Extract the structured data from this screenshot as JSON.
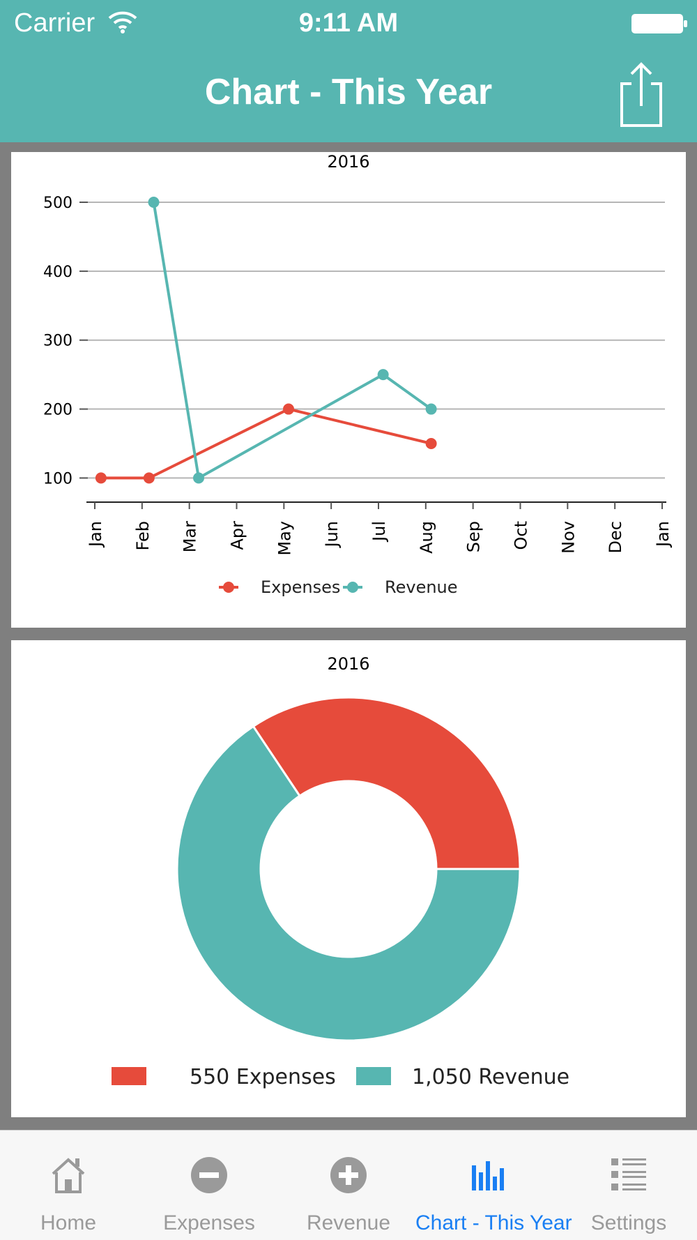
{
  "status_bar": {
    "carrier": "Carrier",
    "time": "9:11 AM"
  },
  "nav": {
    "title": "Chart - This Year",
    "share_icon": "share-icon"
  },
  "colors": {
    "accent": "#57b6b1",
    "expenses": "#e64b3b",
    "revenue": "#57b6b1",
    "tab_active": "#1a7ff3",
    "tab_inactive": "#9a9a9a"
  },
  "chart_data": [
    {
      "type": "line",
      "title": "2016",
      "x_ticks": [
        "Jan",
        "Feb",
        "Mar",
        "Apr",
        "May",
        "Jun",
        "Jul",
        "Aug",
        "Sep",
        "Oct",
        "Nov",
        "Dec",
        "Jan"
      ],
      "y_ticks": [
        "100",
        "200",
        "300",
        "400",
        "500"
      ],
      "ylim": [
        65,
        500
      ],
      "grid": true,
      "legend": "bottom",
      "series": [
        {
          "name": "Expenses",
          "color": "#e64b3b",
          "points": [
            {
              "x": "2016-01-05",
              "y": 100
            },
            {
              "x": "2016-02-05",
              "y": 100
            },
            {
              "x": "2016-05-05",
              "y": 200
            },
            {
              "x": "2016-08-05",
              "y": 150
            }
          ]
        },
        {
          "name": "Revenue",
          "color": "#57b6b1",
          "points": [
            {
              "x": "2016-02-08",
              "y": 500
            },
            {
              "x": "2016-03-08",
              "y": 100
            },
            {
              "x": "2016-07-05",
              "y": 250
            },
            {
              "x": "2016-08-05",
              "y": 200
            }
          ]
        }
      ]
    },
    {
      "type": "pie",
      "title": "2016",
      "donut": true,
      "legend": "bottom",
      "slices": [
        {
          "label": "550 Expenses",
          "name": "Expenses",
          "value": 550,
          "color": "#e64b3b"
        },
        {
          "label": "1,050 Revenue",
          "name": "Revenue",
          "value": 1050,
          "color": "#57b6b1"
        }
      ]
    }
  ],
  "tab_bar": {
    "tabs": [
      {
        "label": "Home",
        "icon": "home-icon",
        "active": false
      },
      {
        "label": "Expenses",
        "icon": "minus-circle-icon",
        "active": false
      },
      {
        "label": "Revenue",
        "icon": "plus-circle-icon",
        "active": false
      },
      {
        "label": "Chart - This Year",
        "icon": "bar-chart-icon",
        "active": true
      },
      {
        "label": "Settings",
        "icon": "list-icon",
        "active": false
      }
    ]
  }
}
